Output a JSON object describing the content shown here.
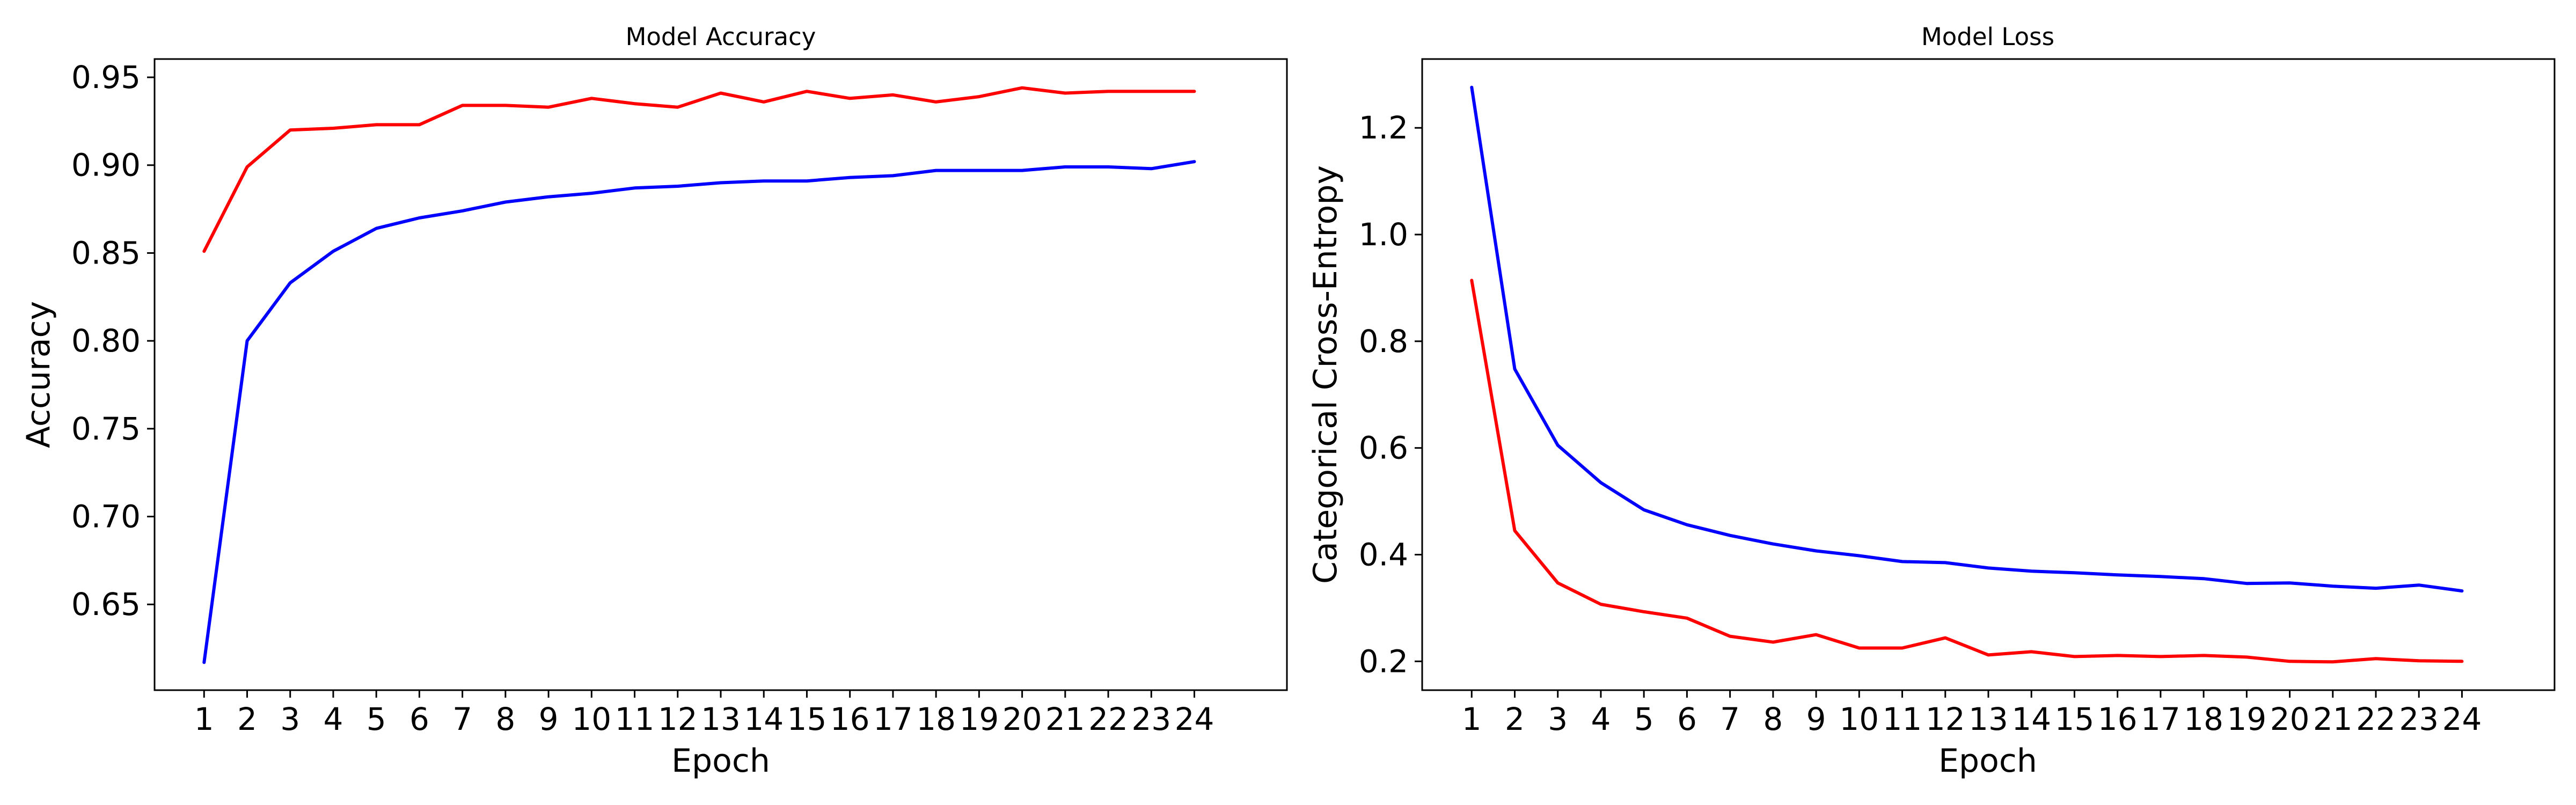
{
  "chart_data": [
    {
      "type": "line",
      "title": "Model Accuracy",
      "xlabel": "Epoch",
      "ylabel": "Accuracy",
      "grid": false,
      "legend": "none",
      "x": [
        1,
        2,
        3,
        4,
        5,
        6,
        7,
        8,
        9,
        10,
        11,
        12,
        13,
        14,
        15,
        16,
        17,
        18,
        19,
        20,
        21,
        22,
        23,
        24
      ],
      "x_ticks": [
        "1",
        "2",
        "3",
        "4",
        "5",
        "6",
        "7",
        "8",
        "9",
        "10",
        "11",
        "12",
        "13",
        "14",
        "15",
        "16",
        "17",
        "18",
        "19",
        "20",
        "21",
        "22",
        "23",
        "24"
      ],
      "xlim": [
        -0.15,
        26.15
      ],
      "ylim": [
        0.6012,
        0.9604
      ],
      "y_ticks": [
        "0.65",
        "0.70",
        "0.75",
        "0.80",
        "0.85",
        "0.90",
        "0.95"
      ],
      "series": [
        {
          "color": "#ff0000",
          "values": [
            0.851,
            0.899,
            0.92,
            0.921,
            0.923,
            0.923,
            0.934,
            0.934,
            0.933,
            0.938,
            0.935,
            0.933,
            0.941,
            0.936,
            0.942,
            0.938,
            0.94,
            0.936,
            0.939,
            0.944,
            0.941,
            0.942,
            0.942,
            0.942
          ]
        },
        {
          "color": "#0000ff",
          "values": [
            0.617,
            0.8,
            0.833,
            0.851,
            0.864,
            0.87,
            0.874,
            0.879,
            0.882,
            0.884,
            0.887,
            0.888,
            0.89,
            0.891,
            0.891,
            0.893,
            0.894,
            0.897,
            0.897,
            0.897,
            0.899,
            0.899,
            0.898,
            0.902
          ]
        }
      ]
    },
    {
      "type": "line",
      "title": "Model Loss",
      "xlabel": "Epoch",
      "ylabel": "Categorical Cross-Entropy",
      "grid": false,
      "legend": "none",
      "x": [
        1,
        2,
        3,
        4,
        5,
        6,
        7,
        8,
        9,
        10,
        11,
        12,
        13,
        14,
        15,
        16,
        17,
        18,
        19,
        20,
        21,
        22,
        23,
        24
      ],
      "x_ticks": [
        "1",
        "2",
        "3",
        "4",
        "5",
        "6",
        "7",
        "8",
        "9",
        "10",
        "11",
        "12",
        "13",
        "14",
        "15",
        "16",
        "17",
        "18",
        "19",
        "20",
        "21",
        "22",
        "23",
        "24"
      ],
      "xlim": [
        -0.15,
        26.15
      ],
      "ylim": [
        0.146,
        1.329
      ],
      "y_ticks": [
        "0.2",
        "0.4",
        "0.6",
        "0.8",
        "1.0",
        "1.2"
      ],
      "series": [
        {
          "color": "#0000ff",
          "values": [
            1.276,
            0.748,
            0.605,
            0.535,
            0.484,
            0.456,
            0.436,
            0.42,
            0.407,
            0.398,
            0.387,
            0.385,
            0.375,
            0.369,
            0.366,
            0.362,
            0.359,
            0.355,
            0.346,
            0.347,
            0.341,
            0.337,
            0.343,
            0.332
          ]
        },
        {
          "color": "#ff0000",
          "values": [
            0.914,
            0.445,
            0.347,
            0.307,
            0.293,
            0.281,
            0.247,
            0.236,
            0.25,
            0.225,
            0.225,
            0.244,
            0.212,
            0.218,
            0.209,
            0.211,
            0.209,
            0.211,
            0.208,
            0.2,
            0.199,
            0.205,
            0.201,
            0.2
          ]
        }
      ]
    }
  ]
}
